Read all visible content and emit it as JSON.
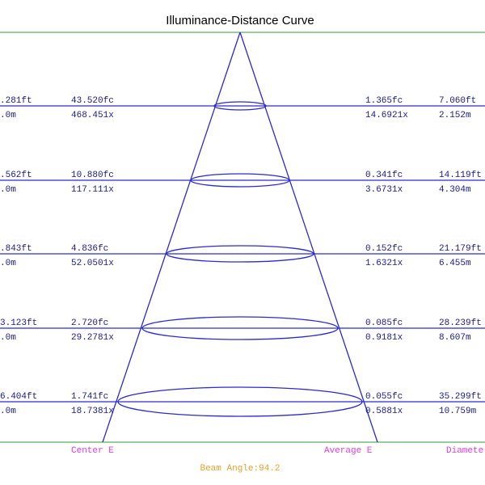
{
  "title": "Illuminance-Distance Curve",
  "rows": [
    {
      "distance_ft": ".281ft",
      "distance_m": ".0m",
      "center_fc": "43.520fc",
      "center_lx": "468.451x",
      "average_fc": "1.365fc",
      "average_lx": "14.6921x",
      "diameter_ft": "7.060ft",
      "diameter_m": "2.152m"
    },
    {
      "distance_ft": ".562ft",
      "distance_m": ".0m",
      "center_fc": "10.880fc",
      "center_lx": "117.111x",
      "average_fc": "0.341fc",
      "average_lx": "3.6731x",
      "diameter_ft": "14.119ft",
      "diameter_m": "4.304m"
    },
    {
      "distance_ft": ".843ft",
      "distance_m": ".0m",
      "center_fc": "4.836fc",
      "center_lx": "52.0501x",
      "average_fc": "0.152fc",
      "average_lx": "1.6321x",
      "diameter_ft": "21.179ft",
      "diameter_m": "6.455m"
    },
    {
      "distance_ft": "3.123ft",
      "distance_m": ".0m",
      "center_fc": "2.720fc",
      "center_lx": "29.2781x",
      "average_fc": "0.085fc",
      "average_lx": "0.9181x",
      "diameter_ft": "28.239ft",
      "diameter_m": "8.607m"
    },
    {
      "distance_ft": "6.404ft",
      "distance_m": ".0m",
      "center_fc": "1.741fc",
      "center_lx": "18.7381x",
      "average_fc": "0.055fc",
      "average_lx": "0.5881x",
      "diameter_ft": "35.299ft",
      "diameter_m": "10.759m"
    }
  ],
  "footer": {
    "center_label": "Center E",
    "average_label": "Average E",
    "diameter_label": "Diamete",
    "beam_angle": "Beam Angle:94.2"
  }
}
